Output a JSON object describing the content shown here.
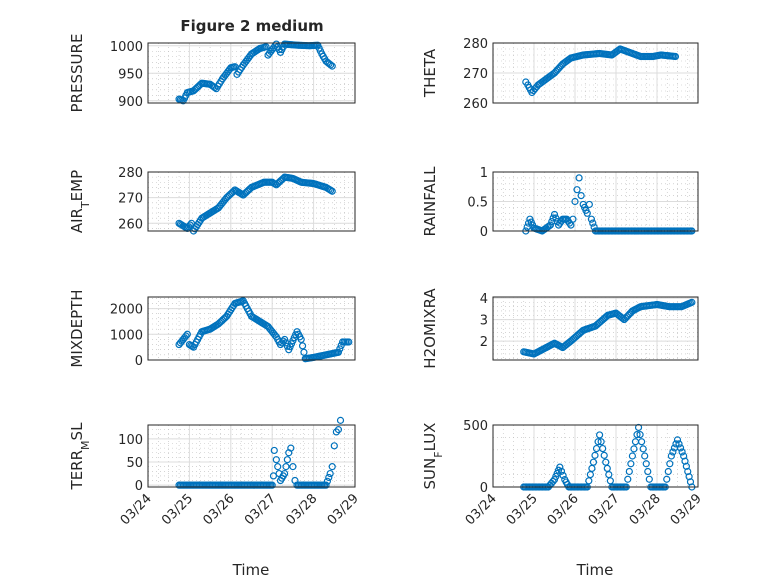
{
  "title": "Figure 2 medium",
  "chart_data": [
    {
      "type": "scatter",
      "ylabel": {
        "main": "PRESSURE",
        "sub": "",
        "rest": ""
      },
      "ylim": [
        896,
        1005
      ],
      "yticks": [
        900,
        950,
        1000
      ],
      "points": [
        [
          0.75,
          903
        ],
        [
          0.85,
          900
        ],
        [
          0.95,
          915
        ],
        [
          1.1,
          918
        ],
        [
          1.3,
          932
        ],
        [
          1.5,
          930
        ],
        [
          1.65,
          922
        ],
        [
          1.8,
          940
        ],
        [
          2.0,
          960
        ],
        [
          2.1,
          962
        ],
        [
          2.15,
          948
        ],
        [
          2.3,
          965
        ],
        [
          2.5,
          985
        ],
        [
          2.7,
          995
        ],
        [
          2.85,
          998
        ],
        [
          2.9,
          983
        ],
        [
          3.1,
          1003
        ],
        [
          3.2,
          988
        ],
        [
          3.3,
          1003
        ],
        [
          3.6,
          1001
        ],
        [
          3.9,
          1000
        ],
        [
          4.1,
          1001
        ],
        [
          4.2,
          985
        ],
        [
          4.3,
          972
        ],
        [
          4.45,
          963
        ]
      ]
    },
    {
      "type": "scatter",
      "ylabel": {
        "main": "THETA",
        "sub": "",
        "rest": ""
      },
      "ylim": [
        260,
        280
      ],
      "yticks": [
        260,
        270,
        280
      ],
      "points": [
        [
          0.8,
          267
        ],
        [
          0.85,
          266
        ],
        [
          0.95,
          263.5
        ],
        [
          1.1,
          266
        ],
        [
          1.3,
          268
        ],
        [
          1.5,
          270
        ],
        [
          1.7,
          273
        ],
        [
          1.9,
          275
        ],
        [
          2.2,
          276
        ],
        [
          2.6,
          276.5
        ],
        [
          2.9,
          276
        ],
        [
          3.1,
          278
        ],
        [
          3.3,
          277
        ],
        [
          3.6,
          275.5
        ],
        [
          3.9,
          275.5
        ],
        [
          4.1,
          276
        ],
        [
          4.45,
          275.5
        ]
      ]
    },
    {
      "type": "scatter",
      "ylabel": {
        "main": "AIR",
        "sub": "T",
        "rest": "EMP"
      },
      "ylim": [
        257,
        280
      ],
      "yticks": [
        260,
        270,
        280
      ],
      "points": [
        [
          0.75,
          260
        ],
        [
          0.85,
          259
        ],
        [
          0.95,
          258
        ],
        [
          1.05,
          260
        ],
        [
          1.1,
          257
        ],
        [
          1.3,
          262
        ],
        [
          1.5,
          264
        ],
        [
          1.7,
          266
        ],
        [
          1.9,
          270
        ],
        [
          2.1,
          273
        ],
        [
          2.3,
          271
        ],
        [
          2.5,
          274
        ],
        [
          2.8,
          276
        ],
        [
          3.0,
          276
        ],
        [
          3.1,
          275
        ],
        [
          3.3,
          278
        ],
        [
          3.5,
          277.5
        ],
        [
          3.7,
          276
        ],
        [
          4.0,
          275.5
        ],
        [
          4.3,
          274
        ],
        [
          4.45,
          272.5
        ]
      ]
    },
    {
      "type": "scatter",
      "ylabel": {
        "main": "RAINFALL",
        "sub": "",
        "rest": ""
      },
      "ylim": [
        0,
        1
      ],
      "yticks": [
        0,
        0.5,
        1
      ],
      "points": [
        [
          0.8,
          0
        ],
        [
          0.9,
          0.2
        ],
        [
          1.0,
          0.05
        ],
        [
          1.2,
          0
        ],
        [
          1.3,
          0.05
        ],
        [
          1.4,
          0.1
        ],
        [
          1.5,
          0.28
        ],
        [
          1.6,
          0.1
        ],
        [
          1.7,
          0.2
        ],
        [
          1.8,
          0.2
        ],
        [
          1.9,
          0.1
        ],
        [
          1.95,
          0.2
        ],
        [
          2.0,
          0.5
        ],
        [
          2.05,
          0.7
        ],
        [
          2.1,
          0.9
        ],
        [
          2.15,
          0.6
        ],
        [
          2.2,
          0.45
        ],
        [
          2.3,
          0.3
        ],
        [
          2.35,
          0.45
        ],
        [
          2.4,
          0.2
        ],
        [
          2.5,
          0
        ],
        [
          4.85,
          0
        ]
      ]
    },
    {
      "type": "scatter",
      "ylabel": {
        "main": "MIXDEPTH",
        "sub": "",
        "rest": ""
      },
      "ylim": [
        0,
        2450
      ],
      "yticks": [
        0,
        1000,
        2000
      ],
      "points": [
        [
          0.75,
          600
        ],
        [
          0.85,
          800
        ],
        [
          0.95,
          1000
        ],
        [
          1.0,
          600
        ],
        [
          1.1,
          500
        ],
        [
          1.3,
          1100
        ],
        [
          1.5,
          1200
        ],
        [
          1.7,
          1400
        ],
        [
          1.9,
          1700
        ],
        [
          2.1,
          2200
        ],
        [
          2.3,
          2300
        ],
        [
          2.5,
          1700
        ],
        [
          2.7,
          1500
        ],
        [
          2.9,
          1300
        ],
        [
          3.1,
          900
        ],
        [
          3.2,
          600
        ],
        [
          3.3,
          800
        ],
        [
          3.4,
          400
        ],
        [
          3.6,
          1100
        ],
        [
          3.7,
          800
        ],
        [
          3.8,
          50
        ],
        [
          4.0,
          100
        ],
        [
          4.3,
          200
        ],
        [
          4.6,
          300
        ],
        [
          4.7,
          700
        ],
        [
          4.85,
          700
        ]
      ]
    },
    {
      "type": "scatter",
      "ylabel": {
        "main": "H2OMIXRA",
        "sub": "",
        "rest": ""
      },
      "ylim": [
        1.12,
        4.05
      ],
      "yticks": [
        2,
        3,
        4
      ],
      "points": [
        [
          0.75,
          1.5
        ],
        [
          1.0,
          1.4
        ],
        [
          1.2,
          1.6
        ],
        [
          1.5,
          1.9
        ],
        [
          1.7,
          1.7
        ],
        [
          1.9,
          2.0
        ],
        [
          2.2,
          2.5
        ],
        [
          2.5,
          2.7
        ],
        [
          2.8,
          3.2
        ],
        [
          3.0,
          3.3
        ],
        [
          3.2,
          3.0
        ],
        [
          3.4,
          3.4
        ],
        [
          3.6,
          3.6
        ],
        [
          4.0,
          3.7
        ],
        [
          4.3,
          3.6
        ],
        [
          4.6,
          3.6
        ],
        [
          4.85,
          3.8
        ]
      ]
    },
    {
      "type": "scatter",
      "ylabel": {
        "main": "TERR",
        "sub": "M",
        "rest": "SL"
      },
      "ylim": [
        -4,
        130
      ],
      "yticks": [
        0,
        50,
        100
      ],
      "points": [
        [
          0.75,
          0
        ],
        [
          3.0,
          0
        ],
        [
          3.03,
          20
        ],
        [
          3.05,
          75
        ],
        [
          3.1,
          55
        ],
        [
          3.2,
          10
        ],
        [
          3.3,
          25
        ],
        [
          3.4,
          70
        ],
        [
          3.45,
          80
        ],
        [
          3.5,
          40
        ],
        [
          3.55,
          10
        ],
        [
          3.6,
          0
        ],
        [
          4.3,
          0
        ],
        [
          4.4,
          25
        ],
        [
          4.45,
          40
        ],
        [
          4.5,
          85
        ],
        [
          4.55,
          115
        ],
        [
          4.6,
          120
        ],
        [
          4.65,
          140
        ]
      ]
    },
    {
      "type": "scatter",
      "ylabel": {
        "main": "SUN",
        "sub": "F",
        "rest": "LUX"
      },
      "ylim": [
        0,
        500
      ],
      "yticks": [
        0,
        500
      ],
      "points": [
        [
          0.75,
          0
        ],
        [
          1.35,
          0
        ],
        [
          1.5,
          60
        ],
        [
          1.63,
          160
        ],
        [
          1.75,
          60
        ],
        [
          1.85,
          0
        ],
        [
          2.3,
          0
        ],
        [
          2.45,
          200
        ],
        [
          2.6,
          420
        ],
        [
          2.75,
          200
        ],
        [
          2.9,
          0
        ],
        [
          3.25,
          0
        ],
        [
          3.4,
          250
        ],
        [
          3.55,
          480
        ],
        [
          3.7,
          250
        ],
        [
          3.85,
          0
        ],
        [
          4.2,
          0
        ],
        [
          4.35,
          250
        ],
        [
          4.5,
          380
        ],
        [
          4.65,
          250
        ],
        [
          4.85,
          0
        ]
      ]
    }
  ],
  "xticks": [
    "03/24",
    "03/25",
    "03/26",
    "03/27",
    "03/28",
    "03/29"
  ],
  "xlabel": "Time",
  "xlim_days": [
    0,
    5
  ],
  "marker_color": "#0072BD"
}
